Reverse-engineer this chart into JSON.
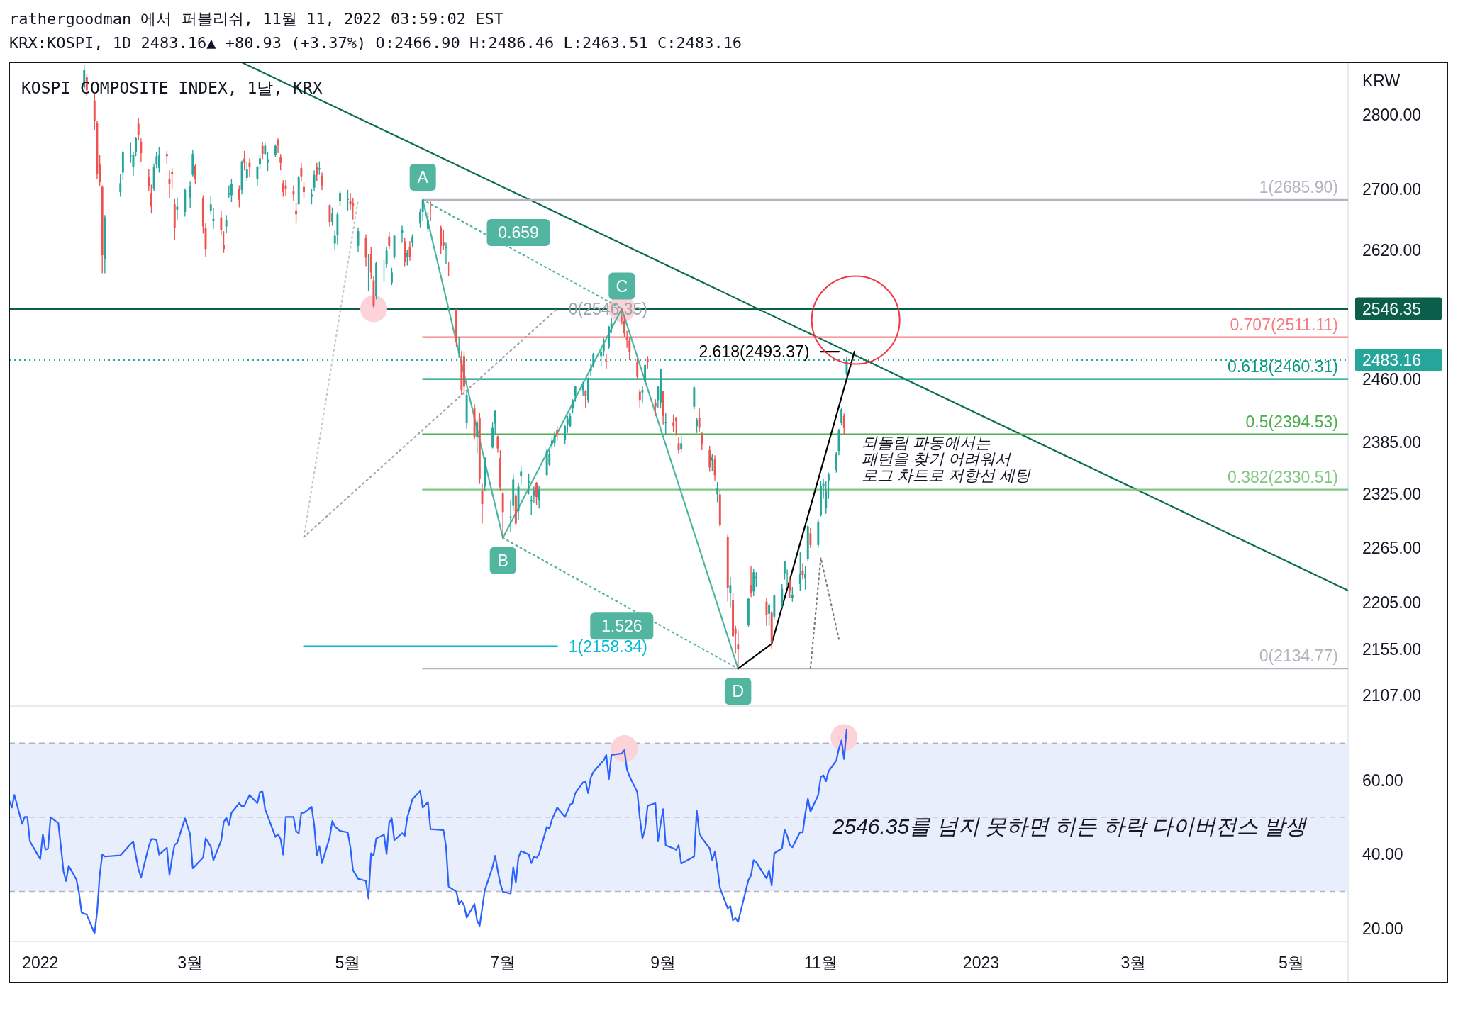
{
  "chart_data": [
    {
      "type": "candlestick",
      "title": "rathergoodman 에서 퍼블리쉬, 11월 11, 2022 03:59:02 EST",
      "subtitle": "KRX:KOSPI, 1D 2483.16▲ +80.93 (+3.37%) O:2466.90 H:2486.46 L:2463.51 C:2483.16",
      "ylabel": "KRW",
      "log": true,
      "tick_labels": "y",
      "xlim": [
        "2021-12-22",
        "2023-05-24"
      ],
      "ylim": [
        2096,
        2873
      ],
      "yticks": [
        {
          "value": 2107,
          "label": "2107.00"
        },
        {
          "value": 2155,
          "label": "2155.00"
        },
        {
          "value": 2205,
          "label": "2205.00"
        },
        {
          "value": 2265,
          "label": "2265.00"
        },
        {
          "value": 2325,
          "label": "2325.00"
        },
        {
          "value": 2385,
          "label": "2385.00"
        },
        {
          "value": 2460,
          "label": "2460.00"
        },
        {
          "value": 2620,
          "label": "2620.00"
        },
        {
          "value": 2700,
          "label": "2700.00"
        },
        {
          "value": 2800,
          "label": "2800.00"
        }
      ],
      "x": [
        "2022-01-20",
        "2022-01-21",
        "2022-01-24",
        "2022-01-25",
        "2022-01-26",
        "2022-01-27",
        "2022-01-28",
        "2022-02-03",
        "2022-02-04",
        "2022-02-07",
        "2022-02-08",
        "2022-02-09",
        "2022-02-10",
        "2022-02-11",
        "2022-02-14",
        "2022-02-15",
        "2022-02-16",
        "2022-02-17",
        "2022-02-18",
        "2022-02-21",
        "2022-02-22",
        "2022-02-23",
        "2022-02-24",
        "2022-02-25",
        "2022-02-28",
        "2022-03-02",
        "2022-03-03",
        "2022-03-04",
        "2022-03-07",
        "2022-03-08",
        "2022-03-10",
        "2022-03-11",
        "2022-03-14",
        "2022-03-15",
        "2022-03-16",
        "2022-03-17",
        "2022-03-18",
        "2022-03-21",
        "2022-03-22",
        "2022-03-23",
        "2022-03-24",
        "2022-03-25",
        "2022-03-28",
        "2022-03-29",
        "2022-03-30",
        "2022-03-31",
        "2022-04-01",
        "2022-04-04",
        "2022-04-05",
        "2022-04-06",
        "2022-04-07",
        "2022-04-08",
        "2022-04-11",
        "2022-04-12",
        "2022-04-13",
        "2022-04-14",
        "2022-04-15",
        "2022-04-18",
        "2022-04-19",
        "2022-04-20",
        "2022-04-21",
        "2022-04-22",
        "2022-04-25",
        "2022-04-26",
        "2022-04-27",
        "2022-04-28",
        "2022-04-29",
        "2022-05-02",
        "2022-05-03",
        "2022-05-04",
        "2022-05-06",
        "2022-05-09",
        "2022-05-10",
        "2022-05-11",
        "2022-05-12",
        "2022-05-13",
        "2022-05-16",
        "2022-05-17",
        "2022-05-18",
        "2022-05-19",
        "2022-05-20",
        "2022-05-23",
        "2022-05-24",
        "2022-05-25",
        "2022-05-26",
        "2022-05-27",
        "2022-05-30",
        "2022-05-31",
        "2022-06-02",
        "2022-06-03",
        "2022-06-07",
        "2022-06-08",
        "2022-06-09",
        "2022-06-10",
        "2022-06-13",
        "2022-06-14",
        "2022-06-15",
        "2022-06-16",
        "2022-06-17",
        "2022-06-20",
        "2022-06-21",
        "2022-06-22",
        "2022-06-23",
        "2022-06-24",
        "2022-06-27",
        "2022-06-28",
        "2022-06-29",
        "2022-06-30",
        "2022-07-01",
        "2022-07-04",
        "2022-07-05",
        "2022-07-06",
        "2022-07-07",
        "2022-07-08",
        "2022-07-11",
        "2022-07-12",
        "2022-07-13",
        "2022-07-14",
        "2022-07-15",
        "2022-07-18",
        "2022-07-19",
        "2022-07-20",
        "2022-07-21",
        "2022-07-22",
        "2022-07-25",
        "2022-07-26",
        "2022-07-27",
        "2022-07-28",
        "2022-07-29",
        "2022-08-01",
        "2022-08-02",
        "2022-08-03",
        "2022-08-04",
        "2022-08-05",
        "2022-08-08",
        "2022-08-09",
        "2022-08-10",
        "2022-08-11",
        "2022-08-12",
        "2022-08-16",
        "2022-08-17",
        "2022-08-18",
        "2022-08-19",
        "2022-08-22",
        "2022-08-23",
        "2022-08-24",
        "2022-08-25",
        "2022-08-26",
        "2022-08-29",
        "2022-08-30",
        "2022-08-31",
        "2022-09-01",
        "2022-09-02",
        "2022-09-05",
        "2022-09-06",
        "2022-09-07",
        "2022-09-08",
        "2022-09-13",
        "2022-09-14",
        "2022-09-15",
        "2022-09-16",
        "2022-09-19",
        "2022-09-20",
        "2022-09-21",
        "2022-09-22",
        "2022-09-23",
        "2022-09-26",
        "2022-09-27",
        "2022-09-28",
        "2022-09-29",
        "2022-09-30",
        "2022-10-04",
        "2022-10-05",
        "2022-10-06",
        "2022-10-07",
        "2022-10-11",
        "2022-10-12",
        "2022-10-13",
        "2022-10-14",
        "2022-10-17",
        "2022-10-18",
        "2022-10-19",
        "2022-10-20",
        "2022-10-21",
        "2022-10-24",
        "2022-10-25",
        "2022-10-26",
        "2022-10-27",
        "2022-10-28",
        "2022-10-31",
        "2022-11-01",
        "2022-11-02",
        "2022-11-03",
        "2022-11-04",
        "2022-11-07",
        "2022-11-08",
        "2022-11-09",
        "2022-11-10",
        "2022-11-11"
      ],
      "ohlc": [
        [
          2838,
          2869,
          2836,
          2862
        ],
        [
          2852,
          2856,
          2826,
          2834
        ],
        [
          2820,
          2830,
          2779,
          2792
        ],
        [
          2789,
          2792,
          2714,
          2720
        ],
        [
          2734,
          2746,
          2704,
          2709
        ],
        [
          2703,
          2705,
          2591,
          2614
        ],
        [
          2609,
          2666,
          2591,
          2663
        ],
        [
          2696,
          2720,
          2690,
          2708
        ],
        [
          2722,
          2751,
          2712,
          2750
        ],
        [
          2745,
          2762,
          2735,
          2745
        ],
        [
          2729,
          2750,
          2718,
          2746
        ],
        [
          2750,
          2770,
          2744,
          2769
        ],
        [
          2788,
          2795,
          2765,
          2772
        ],
        [
          2763,
          2768,
          2736,
          2748
        ],
        [
          2717,
          2727,
          2697,
          2704
        ],
        [
          2695,
          2706,
          2668,
          2677
        ],
        [
          2701,
          2734,
          2698,
          2730
        ],
        [
          2733,
          2750,
          2728,
          2744
        ],
        [
          2728,
          2756,
          2722,
          2745
        ],
        [
          2747,
          2751,
          2733,
          2744
        ],
        [
          2714,
          2725,
          2688,
          2707
        ],
        [
          2723,
          2728,
          2700,
          2720
        ],
        [
          2680,
          2687,
          2634,
          2649
        ],
        [
          2673,
          2689,
          2660,
          2677
        ],
        [
          2670,
          2701,
          2664,
          2699
        ],
        [
          2689,
          2710,
          2675,
          2704
        ],
        [
          2719,
          2752,
          2717,
          2747
        ],
        [
          2731,
          2733,
          2707,
          2713
        ],
        [
          2688,
          2692,
          2642,
          2651
        ],
        [
          2649,
          2656,
          2612,
          2622
        ],
        [
          2672,
          2691,
          2667,
          2680
        ],
        [
          2658,
          2675,
          2648,
          2661
        ],
        [
          2663,
          2672,
          2640,
          2646
        ],
        [
          2627,
          2645,
          2617,
          2622
        ],
        [
          2651,
          2666,
          2643,
          2659
        ],
        [
          2693,
          2705,
          2688,
          2695
        ],
        [
          2692,
          2714,
          2683,
          2707
        ],
        [
          2700,
          2705,
          2676,
          2686
        ],
        [
          2699,
          2738,
          2693,
          2736
        ],
        [
          2741,
          2751,
          2725,
          2735
        ],
        [
          2715,
          2737,
          2711,
          2726
        ],
        [
          2735,
          2741,
          2716,
          2730
        ],
        [
          2714,
          2731,
          2705,
          2730
        ],
        [
          2733,
          2746,
          2727,
          2741
        ],
        [
          2758,
          2763,
          2740,
          2747
        ],
        [
          2747,
          2762,
          2745,
          2758
        ],
        [
          2735,
          2749,
          2724,
          2740
        ],
        [
          2746,
          2760,
          2743,
          2758
        ],
        [
          2765,
          2768,
          2748,
          2759
        ],
        [
          2743,
          2747,
          2725,
          2735
        ],
        [
          2708,
          2712,
          2690,
          2696
        ],
        [
          2705,
          2712,
          2691,
          2700
        ],
        [
          2697,
          2705,
          2684,
          2693
        ],
        [
          2672,
          2682,
          2655,
          2667
        ],
        [
          2680,
          2718,
          2680,
          2716
        ],
        [
          2728,
          2735,
          2710,
          2717
        ],
        [
          2703,
          2709,
          2688,
          2696
        ],
        [
          2690,
          2700,
          2680,
          2693
        ],
        [
          2702,
          2725,
          2697,
          2719
        ],
        [
          2730,
          2735,
          2711,
          2719
        ],
        [
          2728,
          2737,
          2719,
          2728
        ],
        [
          2718,
          2722,
          2699,
          2705
        ],
        [
          2679,
          2680,
          2651,
          2657
        ],
        [
          2657,
          2676,
          2652,
          2668
        ],
        [
          2629,
          2646,
          2621,
          2639
        ],
        [
          2640,
          2670,
          2628,
          2667
        ],
        [
          2684,
          2697,
          2678,
          2695
        ],
        [
          2687,
          2699,
          2672,
          2687
        ],
        [
          2684,
          2695,
          2673,
          2680
        ],
        [
          2681,
          2688,
          2660,
          2678
        ],
        [
          2626,
          2650,
          2618,
          2645
        ],
        [
          2636,
          2641,
          2600,
          2611
        ],
        [
          2597,
          2615,
          2569,
          2597
        ],
        [
          2615,
          2625,
          2584,
          2592
        ],
        [
          2582,
          2587,
          2547,
          2550
        ],
        [
          2562,
          2606,
          2558,
          2604
        ],
        [
          2597,
          2608,
          2580,
          2597
        ],
        [
          2603,
          2625,
          2598,
          2620
        ],
        [
          2638,
          2644,
          2622,
          2626
        ],
        [
          2579,
          2598,
          2576,
          2592
        ],
        [
          2612,
          2640,
          2609,
          2639
        ],
        [
          2643,
          2652,
          2630,
          2647
        ],
        [
          2632,
          2636,
          2600,
          2606
        ],
        [
          2612,
          2621,
          2601,
          2617
        ],
        [
          2625,
          2632,
          2607,
          2612
        ],
        [
          2630,
          2641,
          2624,
          2638
        ],
        [
          2655,
          2674,
          2650,
          2670
        ],
        [
          2670,
          2685.9,
          2658,
          2685.9
        ],
        [
          2648,
          2670,
          2644,
          2659
        ],
        [
          2672,
          2684,
          2658,
          2671
        ],
        [
          2650,
          2652,
          2615,
          2626
        ],
        [
          2631,
          2647,
          2621,
          2626
        ],
        [
          2623,
          2630,
          2603,
          2625
        ],
        [
          2597,
          2606,
          2587,
          2596
        ],
        [
          2546,
          2546,
          2499,
          2505
        ],
        [
          2493,
          2511,
          2486,
          2493
        ],
        [
          2483,
          2494,
          2441,
          2447
        ],
        [
          2488,
          2494,
          2441,
          2451
        ],
        [
          2408,
          2446,
          2401,
          2441
        ],
        [
          2426,
          2430,
          2389,
          2391
        ],
        [
          2391,
          2412,
          2372,
          2409
        ],
        [
          2414,
          2420,
          2337,
          2343
        ],
        [
          2329,
          2337,
          2292,
          2314
        ],
        [
          2334,
          2368,
          2329,
          2367
        ],
        [
          2379,
          2409,
          2378,
          2402
        ],
        [
          2407,
          2423,
          2394,
          2422
        ],
        [
          2392,
          2393,
          2373,
          2378
        ],
        [
          2367,
          2376,
          2329,
          2333
        ],
        [
          2326,
          2328,
          2276,
          2305
        ],
        [
          2300,
          2318,
          2283,
          2300
        ],
        [
          2312,
          2349,
          2306,
          2342
        ],
        [
          2324,
          2327,
          2290,
          2292
        ],
        [
          2306,
          2338,
          2296,
          2334
        ],
        [
          2346,
          2358,
          2336,
          2351
        ],
        [
          2338,
          2349,
          2325,
          2340
        ],
        [
          2318,
          2324,
          2302,
          2318
        ],
        [
          2324,
          2334,
          2315,
          2329
        ],
        [
          2338,
          2339,
          2313,
          2322
        ],
        [
          2319,
          2335,
          2309,
          2331
        ],
        [
          2347,
          2377,
          2347,
          2375
        ],
        [
          2359,
          2376,
          2357,
          2371
        ],
        [
          2383,
          2391,
          2377,
          2387
        ],
        [
          2384,
          2398,
          2380,
          2393
        ],
        [
          2400,
          2404,
          2387,
          2394
        ],
        [
          2388,
          2405,
          2383,
          2404
        ],
        [
          2406,
          2416,
          2396,
          2413
        ],
        [
          2404,
          2420,
          2403,
          2416
        ],
        [
          2425,
          2436,
          2419,
          2435
        ],
        [
          2440,
          2452,
          2433,
          2452
        ],
        [
          2447,
          2457,
          2440,
          2452
        ],
        [
          2446,
          2447,
          2426,
          2440
        ],
        [
          2435,
          2462,
          2432,
          2461
        ],
        [
          2470,
          2479,
          2464,
          2473
        ],
        [
          2477,
          2492,
          2474,
          2491
        ],
        [
          2488,
          2497,
          2476,
          2493
        ],
        [
          2494,
          2510,
          2488,
          2503
        ],
        [
          2482,
          2490,
          2472,
          2481
        ],
        [
          2499,
          2525,
          2497,
          2524
        ],
        [
          2522,
          2535,
          2516,
          2528
        ],
        [
          2535,
          2546.35,
          2527,
          2534
        ],
        [
          2531,
          2537,
          2511,
          2516
        ],
        [
          2510,
          2519,
          2498,
          2508
        ],
        [
          2507,
          2511,
          2483,
          2493
        ],
        [
          2481,
          2485,
          2460,
          2463
        ],
        [
          2445,
          2448,
          2426,
          2435
        ],
        [
          2444,
          2452,
          2432,
          2447
        ],
        [
          2457,
          2479,
          2455,
          2477
        ],
        [
          2485,
          2488,
          2473,
          2481
        ],
        [
          2432,
          2436,
          2416,
          2427
        ],
        [
          2435,
          2452,
          2426,
          2451
        ],
        [
          2432,
          2473,
          2425,
          2472
        ],
        [
          2446,
          2446,
          2406,
          2416
        ],
        [
          2408,
          2420,
          2394,
          2409
        ],
        [
          2409,
          2418,
          2397,
          2404
        ],
        [
          2414,
          2415,
          2393,
          2410
        ],
        [
          2384,
          2391,
          2372,
          2376
        ],
        [
          2377,
          2393,
          2373,
          2384
        ],
        [
          2427,
          2452,
          2424,
          2450
        ],
        [
          2404,
          2414,
          2396,
          2411
        ],
        [
          2414,
          2425,
          2397,
          2402
        ],
        [
          2394,
          2397,
          2376,
          2383
        ],
        [
          2376,
          2381,
          2351,
          2356
        ],
        [
          2364,
          2371,
          2352,
          2368
        ],
        [
          2365,
          2370,
          2341,
          2347
        ],
        [
          2325,
          2339,
          2316,
          2332
        ],
        [
          2325,
          2330,
          2288,
          2290
        ],
        [
          2277,
          2280,
          2206,
          2221
        ],
        [
          2215,
          2233,
          2200,
          2224
        ],
        [
          2208,
          2216,
          2169,
          2169
        ],
        [
          2177,
          2180,
          2151,
          2171
        ],
        [
          2160,
          2175,
          2134.77,
          2155
        ],
        [
          2181,
          2210,
          2179,
          2209
        ],
        [
          2224,
          2245,
          2211,
          2215
        ],
        [
          2217,
          2242,
          2212,
          2238
        ],
        [
          2232,
          2238,
          2222,
          2233
        ],
        [
          2206,
          2210,
          2180,
          2192
        ],
        [
          2193,
          2205,
          2180,
          2202
        ],
        [
          2194,
          2196,
          2155,
          2163
        ],
        [
          2190,
          2213,
          2187,
          2213
        ],
        [
          2203,
          2225,
          2199,
          2220
        ],
        [
          2237,
          2250,
          2230,
          2250
        ],
        [
          2237,
          2241,
          2222,
          2237
        ],
        [
          2228,
          2232,
          2210,
          2218
        ],
        [
          2210,
          2222,
          2206,
          2213
        ],
        [
          2225,
          2260,
          2218,
          2236
        ],
        [
          2240,
          2248,
          2230,
          2235
        ],
        [
          2231,
          2245,
          2219,
          2236
        ],
        [
          2253,
          2290,
          2250,
          2289
        ],
        [
          2281,
          2287,
          2265,
          2268
        ],
        [
          2268,
          2297,
          2265,
          2294
        ],
        [
          2302,
          2340,
          2300,
          2335
        ],
        [
          2334,
          2343,
          2320,
          2337
        ],
        [
          2310,
          2340,
          2303,
          2329
        ],
        [
          2341,
          2350,
          2320,
          2348
        ],
        [
          2353,
          2374,
          2350,
          2372
        ],
        [
          2375,
          2401,
          2370,
          2399
        ],
        [
          2408,
          2425,
          2405,
          2424
        ],
        [
          2416,
          2419,
          2394,
          2402
        ],
        [
          2466.9,
          2486.46,
          2463.51,
          2483.16
        ]
      ],
      "series": [
        {
          "type": "scatter",
          "color": "#fbd3d8",
          "marker": "circle",
          "x": [
            "2022-05-12",
            "2022-08-16"
          ],
          "values": [
            2546.35,
            2546.35
          ]
        },
        {
          "type": "line",
          "color": "#0b6e4f",
          "x": [
            "2022-03-22",
            "2023-05-24"
          ],
          "values": [
            2873,
            2218
          ]
        },
        {
          "type": "line",
          "name": "1(2685.90)",
          "color": "#b2b5be",
          "x": [
            "2022-05-31",
            "2023-05-24"
          ],
          "values": [
            2685.9,
            2685.9
          ]
        },
        {
          "type": "line",
          "name": "0.707(2511.11)",
          "color": "#f77c80",
          "x": [
            "2022-05-31",
            "2023-05-24"
          ],
          "values": [
            2511.11,
            2511.11
          ]
        },
        {
          "type": "line",
          "name": "0.618(2460.31)",
          "color": "#089981",
          "x": [
            "2022-05-31",
            "2023-05-24"
          ],
          "values": [
            2460.31,
            2460.31
          ]
        },
        {
          "type": "line",
          "name": "0.5(2394.53)",
          "color": "#4caf50",
          "x": [
            "2022-05-31",
            "2023-05-24"
          ],
          "values": [
            2394.53,
            2394.53
          ]
        },
        {
          "type": "line",
          "name": "0.382(2330.51)",
          "color": "#81c784",
          "x": [
            "2022-05-31",
            "2023-05-24"
          ],
          "values": [
            2330.51,
            2330.51
          ]
        },
        {
          "type": "line",
          "name": "0(2134.77)",
          "color": "#b2b5be",
          "x": [
            "2022-05-31",
            "2023-05-24"
          ],
          "values": [
            2134.77,
            2134.77
          ]
        },
        {
          "type": "line",
          "color": "#4db6a0",
          "x": [
            "2022-05-31",
            "2022-07-01",
            "2022-08-16",
            "2022-09-30"
          ],
          "values": [
            2685.9,
            2276,
            2546.35,
            2134.77
          ]
        },
        {
          "type": "line",
          "color": "#4db6a0",
          "line_style": "dotted",
          "x": [
            "2022-05-31",
            "2022-08-16"
          ],
          "values": [
            2685.9,
            2546.35
          ]
        },
        {
          "type": "line",
          "color": "#4db6a0",
          "line_style": "dotted",
          "x": [
            "2022-07-01",
            "2022-09-30"
          ],
          "values": [
            2276,
            2134.77
          ]
        },
        {
          "type": "line",
          "color": "#c8c8c8",
          "line_style": "dotted",
          "x": [
            "2022-04-15",
            "2022-05-06"
          ],
          "values": [
            2277,
            2686
          ]
        },
        {
          "type": "line",
          "name": "0(2546.35)",
          "color": "#a0a3ab",
          "line_style": "dotted",
          "x": [
            "2022-04-15",
            "2022-07-22"
          ],
          "values": [
            2277,
            2546.35
          ]
        },
        {
          "type": "line",
          "name": "1(2158.34)",
          "color": "#00bcd4",
          "x": [
            "2022-04-15",
            "2022-07-22"
          ],
          "values": [
            2158.34,
            2158.34
          ]
        },
        {
          "type": "line",
          "color": "#000000",
          "x": [
            "2022-09-30",
            "2022-10-13",
            "2022-11-14"
          ],
          "values": [
            2134.77,
            2161,
            2493.37
          ]
        },
        {
          "type": "line",
          "name": "2.618(2493.37)",
          "color": "#000000",
          "x": [
            "2022-11-01",
            "2022-11-08"
          ],
          "values": [
            2493.37,
            2493.37
          ]
        },
        {
          "type": "line",
          "color": "#787b86",
          "line_style": "dotted",
          "x": [
            "2022-10-28",
            "2022-11-01",
            "2022-11-08"
          ],
          "values": [
            2135,
            2254,
            2166
          ]
        }
      ],
      "ref_lines": [
        {
          "axis": "y",
          "value": 2546.35,
          "label": "2546.35",
          "color": "#0b5e49"
        },
        {
          "axis": "y",
          "value": 2483.16,
          "label": "2483.16",
          "color": "#26a69a",
          "line_style": "dotted"
        }
      ],
      "annotations": [
        "KOSPI COMPOSITE INDEX, 1날, KRX",
        {
          "text": "A",
          "x": "2022-05-31",
          "y": 2685.9
        },
        {
          "text": "B",
          "x": "2022-07-01",
          "y": 2276
        },
        {
          "text": "C",
          "x": "2022-08-16",
          "y": 2546.35
        },
        {
          "text": "D",
          "x": "2022-09-30",
          "y": 2134.77
        },
        {
          "text": "0.659",
          "x": "2022-07-07",
          "y": 2614
        },
        {
          "text": "1.526",
          "x": "2022-08-16",
          "y": 2204
        },
        "되돌림 파동에서는\n패턴을 찾기 어려워서\n로그 차트로 저항선 세팅"
      ]
    },
    {
      "type": "line",
      "color": "#2962ff",
      "xlim": [
        "2021-12-22",
        "2023-05-24"
      ],
      "ylim": [
        16.5,
        79.8
      ],
      "yticks": [
        {
          "value": 20,
          "label": "20.00"
        },
        {
          "value": 40,
          "label": "40.00"
        },
        {
          "value": 60,
          "label": "60.00"
        }
      ],
      "xticks": [
        {
          "value": "2022-01-03",
          "label": "2022"
        },
        {
          "value": "2022-03-02",
          "label": "3월"
        },
        {
          "value": "2022-05-02",
          "label": "5월"
        },
        {
          "value": "2022-07-01",
          "label": "7월"
        },
        {
          "value": "2022-09-01",
          "label": "9월"
        },
        {
          "value": "2022-11-01",
          "label": "11월"
        },
        {
          "value": "2023-01-02",
          "label": "2023"
        },
        {
          "value": "2023-03-02",
          "label": "3월"
        },
        {
          "value": "2023-05-02",
          "label": "5월"
        }
      ],
      "x": [
        "2021-12-22",
        "2021-12-23",
        "2021-12-24",
        "2021-12-27",
        "2021-12-28",
        "2021-12-29",
        "2021-12-30",
        "2022-01-03",
        "2022-01-04",
        "2022-01-05",
        "2022-01-06",
        "2022-01-07",
        "2022-01-10",
        "2022-01-11",
        "2022-01-12",
        "2022-01-13",
        "2022-01-14",
        "2022-01-17",
        "2022-01-18",
        "2022-01-19",
        "2022-01-21",
        "2022-01-24",
        "2022-01-25",
        "2022-01-26",
        "2022-01-27",
        "2022-01-28",
        "2022-02-03",
        "2022-02-07",
        "2022-02-08",
        "2022-02-09",
        "2022-02-10",
        "2022-02-11",
        "2022-02-14",
        "2022-02-15",
        "2022-02-16",
        "2022-02-17",
        "2022-02-18",
        "2022-02-21",
        "2022-02-22",
        "2022-02-23",
        "2022-02-24",
        "2022-02-25",
        "2022-02-28",
        "2022-03-02",
        "2022-03-03",
        "2022-03-07",
        "2022-03-08",
        "2022-03-10",
        "2022-03-11",
        "2022-03-14",
        "2022-03-15",
        "2022-03-16",
        "2022-03-17",
        "2022-03-18",
        "2022-03-21",
        "2022-03-22",
        "2022-03-23",
        "2022-03-24",
        "2022-03-25",
        "2022-03-28",
        "2022-03-29",
        "2022-03-30",
        "2022-03-31",
        "2022-04-04",
        "2022-04-05",
        "2022-04-06",
        "2022-04-07",
        "2022-04-08",
        "2022-04-11",
        "2022-04-12",
        "2022-04-13",
        "2022-04-14",
        "2022-04-15",
        "2022-04-18",
        "2022-04-19",
        "2022-04-20",
        "2022-04-21",
        "2022-04-22",
        "2022-04-25",
        "2022-04-26",
        "2022-04-27",
        "2022-04-29",
        "2022-05-02",
        "2022-05-03",
        "2022-05-04",
        "2022-05-06",
        "2022-05-09",
        "2022-05-10",
        "2022-05-11",
        "2022-05-12",
        "2022-05-13",
        "2022-05-16",
        "2022-05-17",
        "2022-05-18",
        "2022-05-19",
        "2022-05-20",
        "2022-05-23",
        "2022-05-24",
        "2022-05-25",
        "2022-05-27",
        "2022-05-30",
        "2022-05-31",
        "2022-06-02",
        "2022-06-03",
        "2022-06-07",
        "2022-06-08",
        "2022-06-09",
        "2022-06-10",
        "2022-06-13",
        "2022-06-14",
        "2022-06-15",
        "2022-06-16",
        "2022-06-17",
        "2022-06-20",
        "2022-06-21",
        "2022-06-22",
        "2022-06-24",
        "2022-06-27",
        "2022-06-28",
        "2022-06-29",
        "2022-06-30",
        "2022-07-01",
        "2022-07-04",
        "2022-07-05",
        "2022-07-06",
        "2022-07-07",
        "2022-07-08",
        "2022-07-11",
        "2022-07-12",
        "2022-07-13",
        "2022-07-14",
        "2022-07-15",
        "2022-07-18",
        "2022-07-19",
        "2022-07-20",
        "2022-07-22",
        "2022-07-25",
        "2022-07-26",
        "2022-07-27",
        "2022-07-28",
        "2022-07-29",
        "2022-08-01",
        "2022-08-02",
        "2022-08-03",
        "2022-08-04",
        "2022-08-05",
        "2022-08-08",
        "2022-08-09",
        "2022-08-10",
        "2022-08-11",
        "2022-08-12",
        "2022-08-16",
        "2022-08-17",
        "2022-08-18",
        "2022-08-19",
        "2022-08-22",
        "2022-08-23",
        "2022-08-24",
        "2022-08-25",
        "2022-08-26",
        "2022-08-29",
        "2022-08-30",
        "2022-08-31",
        "2022-09-01",
        "2022-09-02",
        "2022-09-05",
        "2022-09-06",
        "2022-09-07",
        "2022-09-08",
        "2022-09-13",
        "2022-09-14",
        "2022-09-15",
        "2022-09-16",
        "2022-09-19",
        "2022-09-20",
        "2022-09-21",
        "2022-09-22",
        "2022-09-23",
        "2022-09-26",
        "2022-09-27",
        "2022-09-28",
        "2022-09-29",
        "2022-09-30",
        "2022-10-04",
        "2022-10-05",
        "2022-10-06",
        "2022-10-07",
        "2022-10-11",
        "2022-10-12",
        "2022-10-13",
        "2022-10-14",
        "2022-10-17",
        "2022-10-18",
        "2022-10-19",
        "2022-10-20",
        "2022-10-21",
        "2022-10-24",
        "2022-10-25",
        "2022-10-26",
        "2022-10-27",
        "2022-10-28",
        "2022-10-31",
        "2022-11-01",
        "2022-11-02",
        "2022-11-03",
        "2022-11-04",
        "2022-11-07",
        "2022-11-08",
        "2022-11-09",
        "2022-11-10",
        "2022-11-11"
      ],
      "values": [
        54.6,
        52.6,
        56.0,
        48.2,
        50.1,
        50.1,
        43.5,
        38.7,
        45.4,
        41.3,
        41.5,
        50.0,
        48.4,
        42.1,
        35.4,
        32.8,
        36.9,
        33.2,
        29.6,
        24.3,
        23.7,
        18.7,
        24.4,
        34.3,
        39.9,
        39.4,
        39.7,
        42.8,
        43.4,
        39.6,
        36.0,
        33.7,
        42.2,
        44.1,
        44.1,
        43.8,
        39.9,
        41.8,
        34.4,
        39.0,
        42.6,
        43.1,
        49.7,
        45.4,
        36.2,
        39.1,
        44.3,
        42.1,
        38.4,
        43.7,
        48.7,
        49.9,
        47.9,
        51.2,
        53.8,
        52.9,
        53.1,
        54.6,
        56.0,
        53.8,
        56.8,
        56.9,
        52.2,
        44.7,
        45.4,
        44.1,
        39.9,
        50.1,
        50.1,
        46.2,
        45.7,
        51.2,
        51.2,
        52.8,
        47.9,
        39.7,
        42.2,
        37.6,
        44.6,
        49.0,
        47.5,
        46.3,
        45.9,
        41.9,
        35.7,
        33.4,
        32.8,
        28.1,
        40.3,
        39.7,
        44.3,
        45.3,
        40.1,
        48.5,
        49.7,
        43.8,
        45.7,
        45.0,
        49.9,
        54.9,
        57.1,
        52.6,
        54.1,
        46.8,
        46.6,
        46.5,
        42.1,
        31.3,
        29.9,
        26.6,
        27.4,
        26.2,
        22.9,
        26.6,
        22.2,
        20.7,
        30.3,
        36.6,
        39.6,
        35.6,
        32.1,
        29.9,
        29.4,
        36.5,
        32.4,
        39.1,
        40.9,
        40.0,
        37.6,
        39.4,
        39.0,
        40.1,
        47.4,
        46.9,
        49.4,
        52.6,
        50.1,
        51.6,
        53.4,
        53.8,
        56.5,
        59.4,
        59.6,
        56.5,
        60.7,
        62.2,
        64.6,
        65.3,
        66.8,
        60.3,
        66.8,
        67.2,
        68.1,
        62.9,
        61.0,
        56.8,
        49.7,
        44.3,
        46.9,
        53.1,
        53.8,
        43.5,
        48.2,
        52.2,
        42.4,
        41.6,
        41.2,
        42.5,
        37.5,
        39.4,
        51.8,
        45.7,
        44.4,
        41.6,
        38.4,
        40.7,
        36.2,
        30.9,
        25.4,
        26.0,
        22.2,
        22.8,
        21.8,
        33.1,
        34.3,
        38.4,
        37.9,
        33.5,
        35.7,
        31.6,
        40.3,
        41.6,
        46.6,
        45.0,
        42.5,
        41.9,
        46.0,
        45.9,
        51.0,
        55.0,
        51.5,
        56.0,
        60.9,
        61.3,
        59.7,
        62.4,
        65.3,
        68.5,
        70.7,
        65.7,
        73.7
      ],
      "series": [
        {
          "type": "scatter",
          "color": "#fbd3d8",
          "marker": "circle",
          "x": [
            "2022-08-17",
            "2022-11-10"
          ],
          "values": [
            68.5,
            71.5
          ]
        }
      ],
      "bands": [
        {
          "axis": "y",
          "from": 30,
          "to": 70,
          "color": "#e9eefc"
        }
      ],
      "ref_lines": [
        {
          "axis": "y",
          "value": 70,
          "color": "#b2b5be",
          "line_style": "dashed"
        },
        {
          "axis": "y",
          "value": 50,
          "color": "#b2b5be",
          "line_style": "dashed"
        },
        {
          "axis": "y",
          "value": 30,
          "color": "#b2b5be",
          "line_style": "dashed"
        }
      ],
      "annotations": [
        "2546.35를 넘지 못하면 히든 하락 다이버전스 발생"
      ]
    }
  ]
}
